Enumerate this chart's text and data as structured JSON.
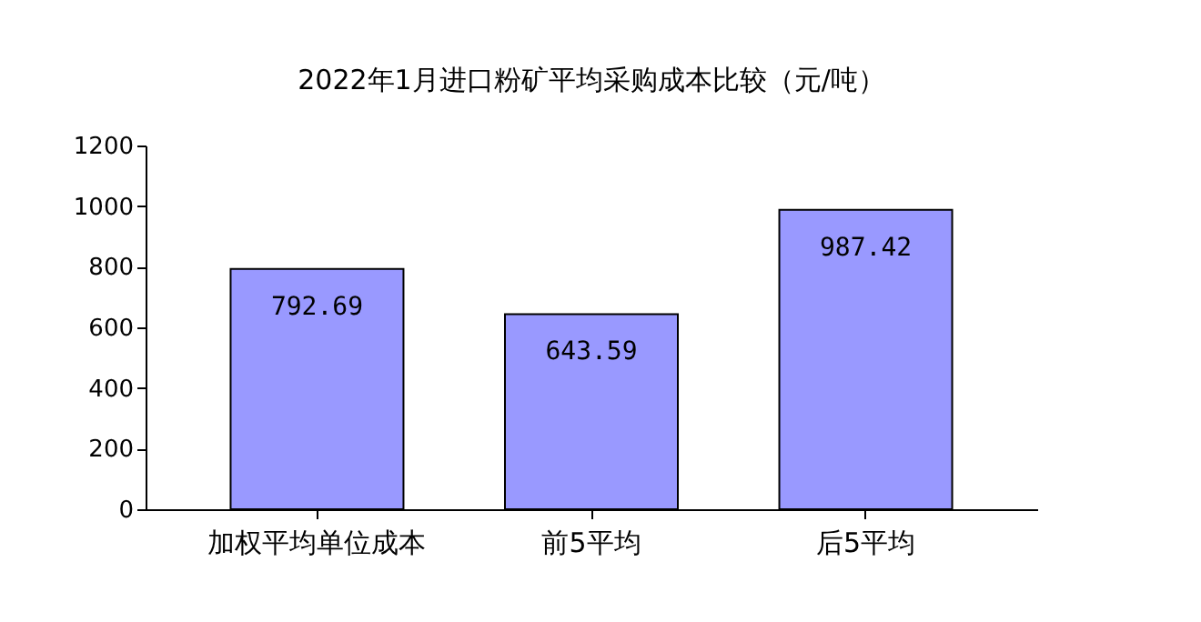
{
  "chart_data": {
    "type": "bar",
    "title": "2022年1月进口粉矿平均采购成本比较（元/吨）",
    "categories": [
      "加权平均单位成本",
      "前5平均",
      "后5平均"
    ],
    "values": [
      792.69,
      643.59,
      987.42
    ],
    "color": "#9999ff",
    "data_labels": true,
    "ylim": [
      0,
      1200
    ],
    "yticks": [
      0,
      200,
      400,
      600,
      800,
      1000,
      1200
    ],
    "grid": false
  }
}
